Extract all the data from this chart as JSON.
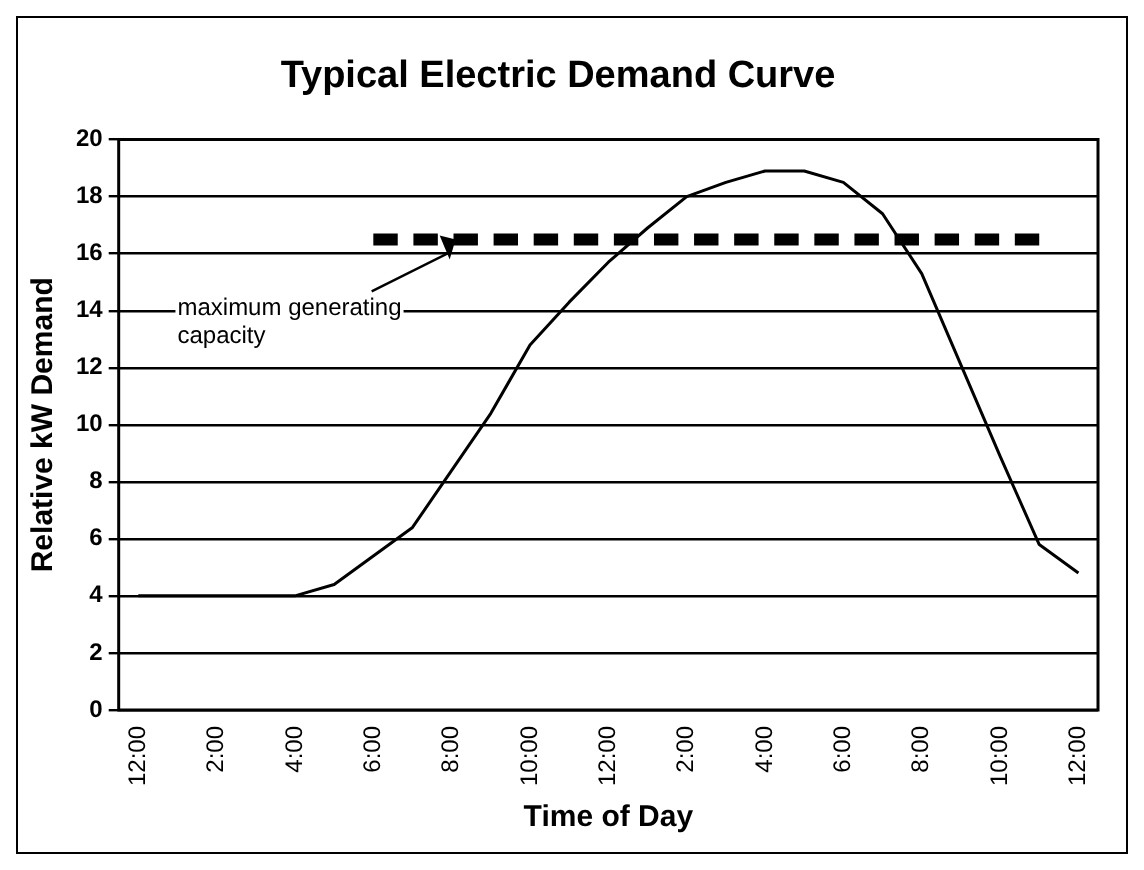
{
  "chart_data": {
    "type": "line",
    "title": "Typical Electric Demand Curve",
    "xlabel": "Time of Day",
    "ylabel": "Relative kW Demand",
    "categories": [
      "12:00",
      null,
      "2:00",
      null,
      "4:00",
      null,
      "6:00",
      null,
      "8:00",
      null,
      "10:00",
      null,
      "12:00",
      null,
      "2:00",
      null,
      "4:00",
      null,
      "6:00",
      null,
      "8:00",
      null,
      "10:00",
      null,
      "12:00"
    ],
    "series": [
      {
        "color": "#000000",
        "values": [
          4,
          4,
          4,
          4,
          4,
          4.4,
          5.4,
          6.4,
          8.4,
          10.4,
          12.8,
          14.3,
          15.7,
          16.9,
          18,
          18.5,
          18.9,
          18.9,
          18.5,
          17.4,
          15.3,
          12.1,
          8.9,
          5.8,
          4.8
        ]
      },
      {
        "color": "#000000",
        "line_style": "dashed",
        "values": [
          null,
          null,
          null,
          null,
          null,
          null,
          16.5,
          16.5,
          16.5,
          16.5,
          16.5,
          16.5,
          16.5,
          16.5,
          16.5,
          16.5,
          16.5,
          16.5,
          16.5,
          16.5,
          16.5,
          16.5,
          16.5,
          16.5,
          null
        ]
      }
    ],
    "ylim": [
      0,
      20
    ],
    "yticks": [
      0,
      2,
      4,
      6,
      8,
      10,
      12,
      14,
      16,
      18,
      20
    ],
    "grid": "y",
    "marker": "none",
    "legend": false,
    "annotations": [
      {
        "text": "maximum generating capacity",
        "x": "8:00",
        "y": 16.5
      }
    ]
  }
}
